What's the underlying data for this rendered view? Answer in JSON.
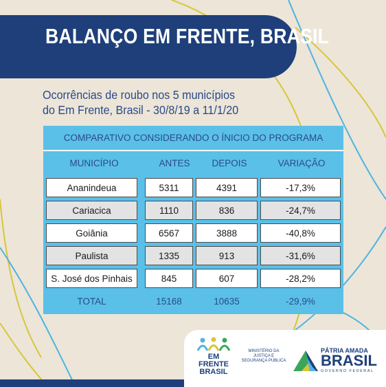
{
  "banner": {
    "title": "BALANÇO EM FRENTE, BRASIL"
  },
  "subtitle": {
    "line1": "Ocorrências de roubo nos 5 municípios",
    "line2": "do Em Frente, Brasil - 30/8/19 a 11/1/20"
  },
  "table": {
    "header": "COMPARATIVO CONSIDERANDO O ÍNICIO DO PROGRAMA",
    "columns": [
      "MUNICÍPIO",
      "ANTES",
      "DEPOIS",
      "VARIAÇÃO"
    ],
    "rows": [
      [
        "Ananindeua",
        "5311",
        "4391",
        "-17,3%"
      ],
      [
        "Cariacica",
        "1110",
        "836",
        "-24,7%"
      ],
      [
        "Goiânia",
        "6567",
        "3888",
        "-40,8%"
      ],
      [
        "Paulista",
        "1335",
        "913",
        "-31,6%"
      ],
      [
        "S. José dos Pinhais",
        "845",
        "607",
        "-28,2%"
      ]
    ],
    "total": [
      "TOTAL",
      "15168",
      "10635",
      "-29,9%"
    ]
  },
  "footer": {
    "em_frente": {
      "line1": "EM FRENTE",
      "line2": "BRASIL"
    },
    "em_frente_small": "",
    "ministry": {
      "line1": "MINISTÉRIO DA",
      "line2": "JUSTIÇA E",
      "line3": "SEGURANÇA PÚBLICA"
    },
    "patria": "PÁTRIA AMADA",
    "brasil": "BRASIL",
    "gov": "GOVERNO FEDERAL"
  },
  "colors": {
    "navy": "#1e3f7a",
    "cyan": "#5ac0e8",
    "background": "#ece5d8",
    "line_yellow": "#d8c63a",
    "line_blue": "#4fb3e0"
  }
}
